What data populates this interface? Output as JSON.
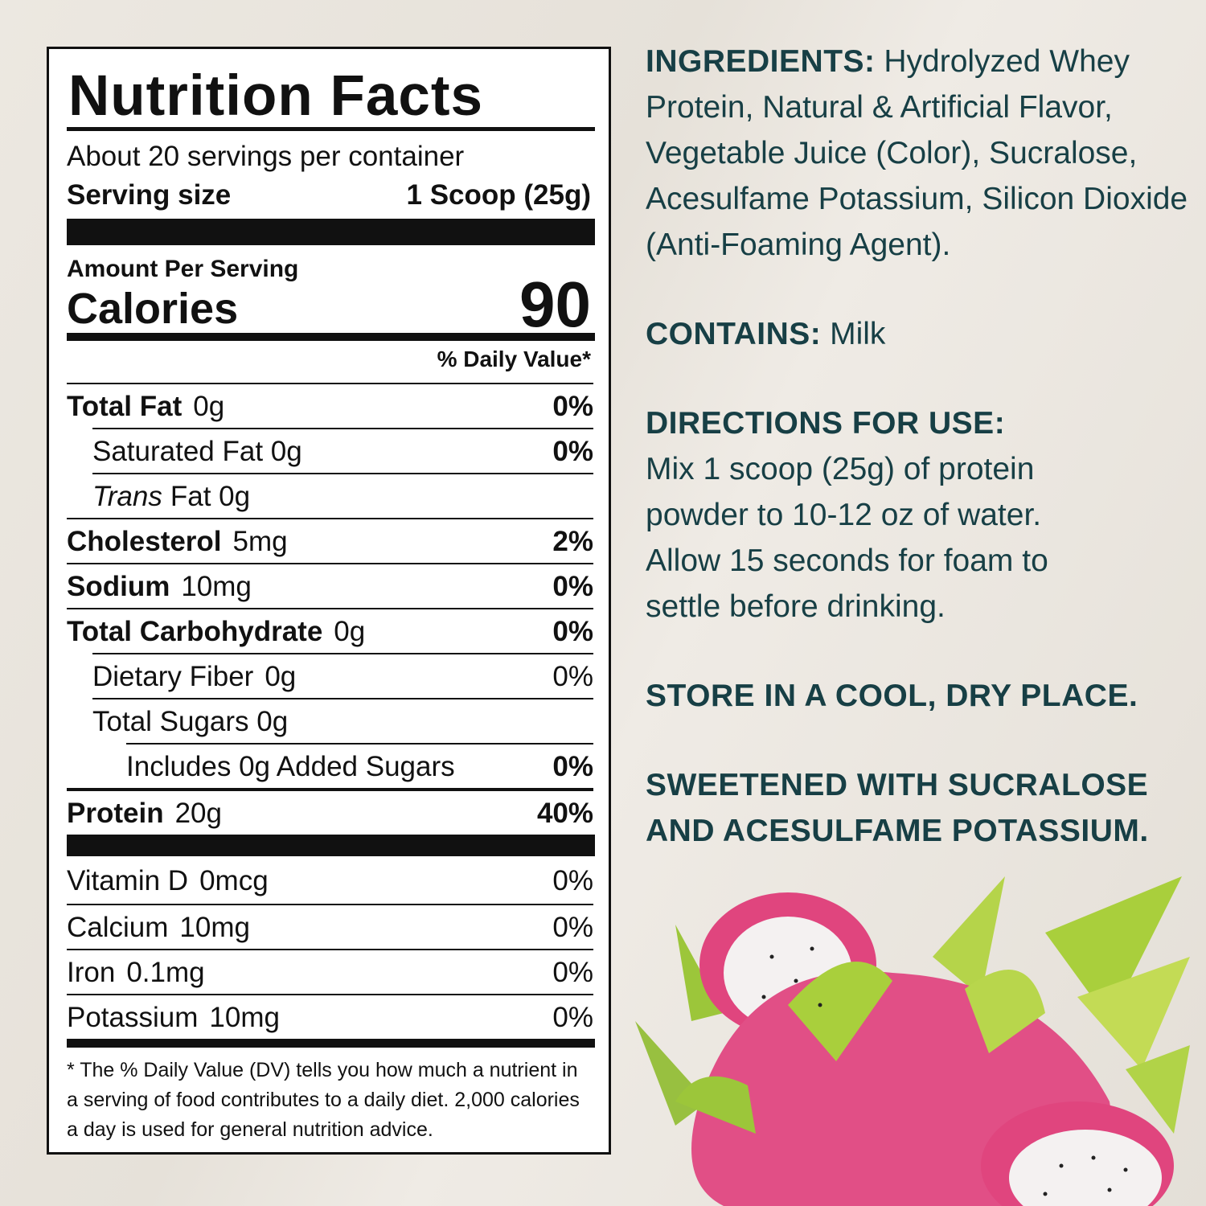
{
  "label": {
    "title": "Nutrition Facts",
    "servings": "About 20 servings per container",
    "serving_size_label": "Serving size",
    "serving_size_value": "1 Scoop (25g)",
    "amount_per_serving": "Amount Per Serving",
    "calories_label": "Calories",
    "calories_value": "90",
    "dv_header": "% Daily Value*",
    "rows": [
      {
        "name": "Total Fat",
        "amount": "0g",
        "dv": "0%"
      },
      {
        "name": "Saturated Fat 0g",
        "amount": "",
        "dv": "0%"
      },
      {
        "name": "Trans",
        "amount": "Fat 0g",
        "dv": ""
      },
      {
        "name": "Cholesterol",
        "amount": "5mg",
        "dv": "2%"
      },
      {
        "name": "Sodium",
        "amount": "10mg",
        "dv": "0%"
      },
      {
        "name": "Total Carbohydrate",
        "amount": "0g",
        "dv": "0%"
      },
      {
        "name": "Dietary Fiber",
        "amount": "0g",
        "dv": "0%"
      },
      {
        "name": "Total Sugars 0g",
        "amount": "",
        "dv": ""
      },
      {
        "name": "Includes 0g Added Sugars",
        "amount": "",
        "dv": "0%"
      },
      {
        "name": "Protein",
        "amount": "20g",
        "dv": "40%"
      }
    ],
    "vitamins": [
      {
        "name": "Vitamin D",
        "amount": "0mcg",
        "dv": "0%"
      },
      {
        "name": "Calcium",
        "amount": "10mg",
        "dv": "0%"
      },
      {
        "name": "Iron",
        "amount": "0.1mg",
        "dv": "0%"
      },
      {
        "name": "Potassium",
        "amount": "10mg",
        "dv": "0%"
      }
    ],
    "footnote": "* The % Daily Value (DV) tells you how much a nutrient in a serving of food contributes to a daily diet. 2,000 calories a day is used for general nutrition advice."
  },
  "info": {
    "ingredients_label": "INGREDIENTS:",
    "ingredients_text": "Hydrolyzed Whey Protein, Natural & Artificial Flavor, Vegetable Juice (Color), Sucralose, Acesulfame Potassium, Silicon Dioxide (Anti-Foaming Agent).",
    "contains_label": "CONTAINS:",
    "contains_text": "Milk",
    "directions_label": "DIRECTIONS FOR USE:",
    "directions_text": "Mix 1 scoop (25g) of protein powder to 10-12 oz of water. Allow 15 seconds for foam to settle before drinking.",
    "storage": "STORE IN A COOL, DRY PLACE.",
    "sweetened": "SWEETENED WITH SUCRALOSE AND ACESULFAME POTASSIUM."
  },
  "colors": {
    "text_teal": "#173f45",
    "fruit_pink": "#e0457e",
    "bract_green": "#a9cf3c"
  }
}
